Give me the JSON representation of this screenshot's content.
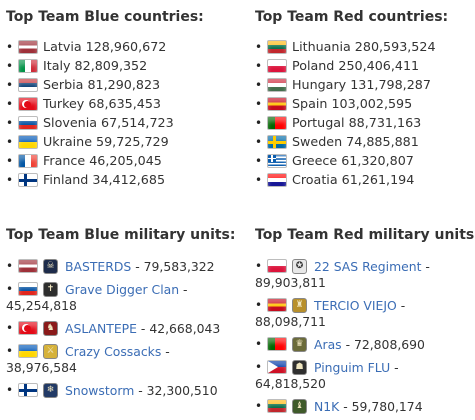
{
  "blue_countries": {
    "title": "Top Team Blue countries:",
    "items": [
      {
        "flag": "latvia-flag",
        "colors": [
          "#9e3039",
          "#ffffff",
          "#9e3039"
        ],
        "layout": "h3w",
        "text": "Latvia 128,960,672"
      },
      {
        "flag": "italy-flag",
        "colors": [
          "#009246",
          "#ffffff",
          "#ce2b37"
        ],
        "layout": "v3",
        "text": "Italy 82,809,352"
      },
      {
        "flag": "serbia-flag",
        "colors": [
          "#c6363c",
          "#0c4076",
          "#ffffff"
        ],
        "layout": "h3",
        "text": "Serbia 81,290,823"
      },
      {
        "flag": "turkey-flag",
        "colors": [
          "#e30a17",
          "#ffffff"
        ],
        "layout": "turkey",
        "text": "Turkey 68,635,453"
      },
      {
        "flag": "slovenia-flag",
        "colors": [
          "#ffffff",
          "#0050a0",
          "#e1261d"
        ],
        "layout": "h3",
        "text": "Slovenia 67,514,723"
      },
      {
        "flag": "ukraine-flag",
        "colors": [
          "#0057b7",
          "#ffd700"
        ],
        "layout": "h2",
        "text": "Ukraine 59,725,729"
      },
      {
        "flag": "france-flag",
        "colors": [
          "#0055a4",
          "#ffffff",
          "#ef4135"
        ],
        "layout": "v3",
        "text": "France 46,205,045"
      },
      {
        "flag": "finland-flag",
        "colors": [
          "#ffffff",
          "#003580"
        ],
        "layout": "nordic",
        "text": "Finland 34,412,685"
      }
    ]
  },
  "red_countries": {
    "title": "Top Team Red countries:",
    "items": [
      {
        "flag": "lithuania-flag",
        "colors": [
          "#fdb913",
          "#006a44",
          "#c1272d"
        ],
        "layout": "h3",
        "text": "Lithuania 280,593,524"
      },
      {
        "flag": "poland-flag",
        "colors": [
          "#ffffff",
          "#dc143c"
        ],
        "layout": "h2",
        "text": "Poland 250,406,411"
      },
      {
        "flag": "hungary-flag",
        "colors": [
          "#cd2a3e",
          "#ffffff",
          "#436f4d"
        ],
        "layout": "h3",
        "text": "Hungary 131,798,287"
      },
      {
        "flag": "spain-flag",
        "colors": [
          "#c60b1e",
          "#ffc400",
          "#c60b1e"
        ],
        "layout": "h3w",
        "text": "Spain 103,002,595"
      },
      {
        "flag": "portugal-flag",
        "colors": [
          "#006600",
          "#ff0000"
        ],
        "layout": "portugal",
        "text": "Portugal 88,731,163"
      },
      {
        "flag": "sweden-flag",
        "colors": [
          "#006aa7",
          "#fecc00"
        ],
        "layout": "nordic",
        "text": "Sweden 74,885,881"
      },
      {
        "flag": "greece-flag",
        "colors": [
          "#0d5eaf",
          "#ffffff"
        ],
        "layout": "greece",
        "text": "Greece 61,320,807"
      },
      {
        "flag": "croatia-flag",
        "colors": [
          "#ff0000",
          "#ffffff",
          "#171796"
        ],
        "layout": "h3",
        "text": "Croatia 61,261,194"
      }
    ]
  },
  "blue_units": {
    "title": "Top Team Blue military units:",
    "items": [
      {
        "flag": "latvia-flag",
        "colors": [
          "#9e3039",
          "#ffffff",
          "#9e3039"
        ],
        "layout": "h3w",
        "emblem": "basterds-emblem",
        "emblem_bg": "#1d2b4a",
        "emblem_glyph": "☠",
        "name": "BASTERDS",
        "value": " - 79,583,322",
        "wrap": ""
      },
      {
        "flag": "slovenia-flag",
        "colors": [
          "#ffffff",
          "#0050a0",
          "#e1261d"
        ],
        "layout": "h3",
        "emblem": "grave-digger-emblem",
        "emblem_bg": "#2e2e2e",
        "emblem_glyph": "✝",
        "name": "Grave Digger Clan",
        "value": " -",
        "wrap": "45,254,818"
      },
      {
        "flag": "turkey-flag",
        "colors": [
          "#e30a17",
          "#ffffff"
        ],
        "layout": "turkey",
        "emblem": "aslantepe-emblem",
        "emblem_bg": "#8a1a1a",
        "emblem_glyph": "♞",
        "name": "ASLANTEPE",
        "value": " - 42,668,043",
        "wrap": ""
      },
      {
        "flag": "ukraine-flag",
        "colors": [
          "#0057b7",
          "#ffd700"
        ],
        "layout": "h2",
        "emblem": "crazy-cossacks-emblem",
        "emblem_bg": "#d6b23a",
        "emblem_glyph": "⚔",
        "name": "Crazy Cossacks",
        "value": " -",
        "wrap": "38,976,584"
      },
      {
        "flag": "finland-flag",
        "colors": [
          "#ffffff",
          "#003580"
        ],
        "layout": "nordic",
        "emblem": "snowstorm-emblem",
        "emblem_bg": "#223a66",
        "emblem_glyph": "❄",
        "name": "Snowstorm",
        "value": " - 32,300,510",
        "wrap": ""
      }
    ]
  },
  "red_units": {
    "title": "Top Team Red military units:",
    "items": [
      {
        "flag": "poland-flag",
        "colors": [
          "#ffffff",
          "#dc143c"
        ],
        "layout": "h2",
        "emblem": "22-sas-emblem",
        "emblem_bg": "#e8e8e8",
        "emblem_glyph": "✪",
        "name": "22 SAS Regiment",
        "value": " -",
        "wrap": "89,903,811"
      },
      {
        "flag": "spain-flag",
        "colors": [
          "#c60b1e",
          "#ffc400",
          "#c60b1e"
        ],
        "layout": "h3w",
        "emblem": "tercio-viejo-emblem",
        "emblem_bg": "#b8902c",
        "emblem_glyph": "♜",
        "name": "TERCIO VIEJO",
        "value": " -",
        "wrap": "88,098,711"
      },
      {
        "flag": "portugal-flag",
        "colors": [
          "#006600",
          "#ff0000"
        ],
        "layout": "portugal",
        "emblem": "aras-emblem",
        "emblem_bg": "#6b6b3a",
        "emblem_glyph": "♛",
        "name": "Aras",
        "value": " - 72,808,690",
        "wrap": ""
      },
      {
        "flag": "philippines-flag",
        "colors": [
          "#0038a8",
          "#ce1126",
          "#ffffff"
        ],
        "layout": "philippines",
        "emblem": "pinguim-emblem",
        "emblem_bg": "#2f2f2f",
        "emblem_glyph": "☗",
        "name": "Pinguim FLU",
        "value": " -",
        "wrap": "64,818,520"
      },
      {
        "flag": "lithuania-flag",
        "colors": [
          "#fdb913",
          "#006a44",
          "#c1272d"
        ],
        "layout": "h3",
        "emblem": "n1k-emblem",
        "emblem_bg": "#3f5a2a",
        "emblem_glyph": "♝",
        "name": "N1K",
        "value": " - 59,780,174",
        "wrap": ""
      }
    ]
  }
}
